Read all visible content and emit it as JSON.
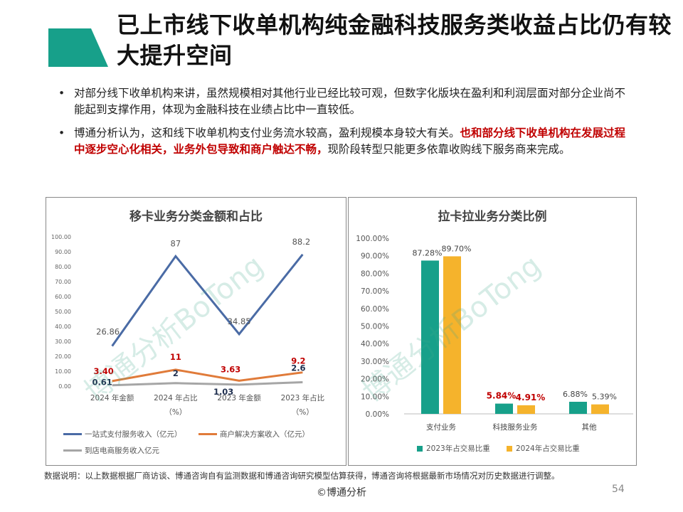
{
  "header": {
    "title": "已上市线下收单机构纯金融科技服务类收益占比仍有较大提升空间",
    "accent_color": "#17a08a"
  },
  "bullets": [
    {
      "parts": [
        {
          "text": "对部分线下收单机构来讲，虽然规模相对其他行业已经比较可观，但数字化版块在盈利和利润层面对部分企业尚不能起到支撑作用，体现为金融科技在业绩占比中一直较低。",
          "red": false
        }
      ]
    },
    {
      "parts": [
        {
          "text": "博通分析认为，这和线下收单机构支付业务流水较高，盈利规模本身较大有关。",
          "red": false
        },
        {
          "text": "也和部分线下收单机构在发展过程中逐步空心化相关，业务外包导致和商户触达不畅，",
          "red": true
        },
        {
          "text": "现阶段转型只能更多依靠收购线下服务商来完成。",
          "red": false
        }
      ]
    }
  ],
  "chart_data": [
    {
      "type": "line",
      "title": "移卡业务分类金额和占比",
      "categories": [
        "2024 年金额",
        "2024 年占比（%）",
        "2023 年金额",
        "2023 年占比（%）"
      ],
      "ylim": [
        0,
        100
      ],
      "yticks": [
        "0.00",
        "10.00",
        "20.00",
        "30.00",
        "40.00",
        "50.00",
        "60.00",
        "70.00",
        "80.00",
        "90.00",
        "100.00"
      ],
      "series": [
        {
          "name": "一站式支付服务收入（亿元）",
          "color": "#4a6ba5",
          "values": [
            26.86,
            87,
            34.85,
            88.2
          ],
          "labels": [
            "26.86",
            "87",
            "34.85",
            "88.2"
          ],
          "label_color": "#555555"
        },
        {
          "name": "商户解决方案收入（亿元）",
          "color": "#e07b3a",
          "values": [
            3.4,
            11,
            3.63,
            9.2
          ],
          "labels": [
            "3.40",
            "11",
            "3.63",
            "9.2"
          ],
          "label_color": "#c00000"
        },
        {
          "name": "到店电商服务收入亿元",
          "color": "#a6a6a6",
          "values": [
            0.61,
            2,
            1.03,
            2.6
          ],
          "labels": [
            "0.61",
            "2",
            "1.03",
            "2.6"
          ],
          "label_color": "#1f2f4f"
        }
      ]
    },
    {
      "type": "bar",
      "title": "拉卡拉业务分类比例",
      "categories": [
        "支付业务",
        "科技服务业务",
        "其他"
      ],
      "ylim": [
        0,
        100
      ],
      "yticks": [
        "0.00%",
        "10.00%",
        "20.00%",
        "30.00%",
        "40.00%",
        "50.00%",
        "60.00%",
        "70.00%",
        "80.00%",
        "90.00%",
        "100.00%"
      ],
      "series": [
        {
          "name": "2023年占交易比重",
          "color": "#17a08a",
          "values": [
            87.28,
            5.84,
            6.88
          ],
          "labels": [
            "87.28%",
            "5.84%",
            "6.88%"
          ]
        },
        {
          "name": "2024年占交易比重",
          "color": "#f5b32c",
          "values": [
            89.7,
            4.91,
            5.39
          ],
          "labels": [
            "89.70%",
            "4.91%",
            "5.39%"
          ]
        }
      ],
      "highlight_label_color": "#c00000",
      "highlight_category": 1
    }
  ],
  "footer": {
    "note": "数据说明：以上数据根据厂商访谈、博通咨询自有监测数据和博通咨询研究模型估算获得，博通咨询将根据最新市场情况对历史数据进行调整。",
    "copyright": "©博通分析",
    "page_number": "54"
  },
  "watermark": "博通分析BoTong"
}
